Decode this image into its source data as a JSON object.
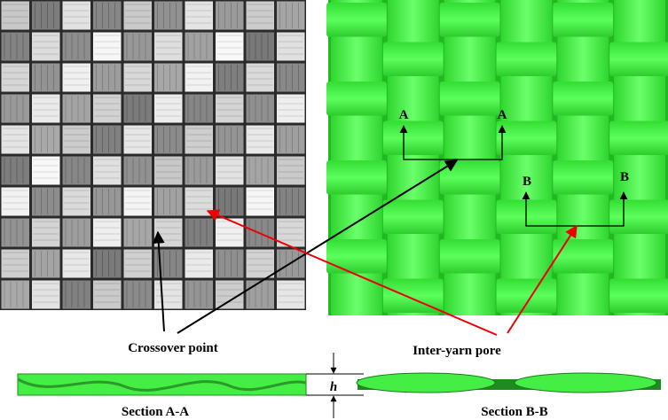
{
  "labels": {
    "a_left": "A",
    "a_right": "A",
    "b_left": "B",
    "b_right": "B"
  },
  "callouts": {
    "crossover": "Crossover point",
    "pore": "Inter-yarn pore"
  },
  "dimension": "h",
  "sections": {
    "aa": "Section A-A",
    "bb": "Section B-B"
  }
}
